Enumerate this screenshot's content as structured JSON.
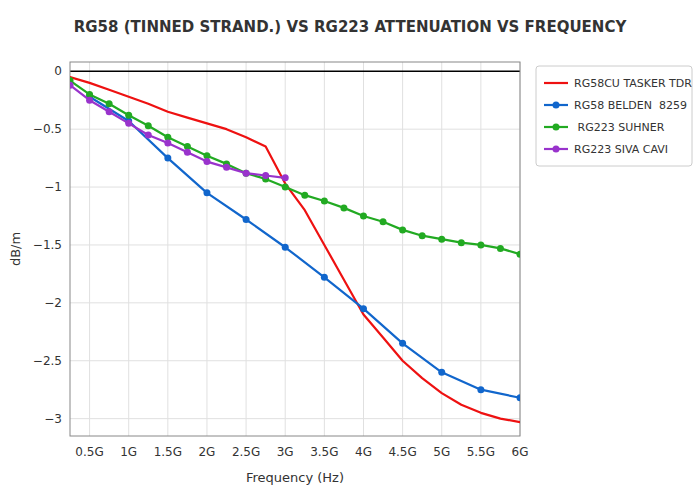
{
  "chart_data": {
    "type": "line",
    "title": "RG58 (TINNED STRAND.) VS RG223 ATTENUATION VS FREQUENCY",
    "x_label": "Frequency (Hz)",
    "y_label": "dB/m",
    "xlim": [
      250000000.0,
      6000000000.0
    ],
    "ylim": [
      -3.15,
      0.08
    ],
    "xticks": [
      {
        "value": 500000000.0,
        "label": "0.5G"
      },
      {
        "value": 1000000000.0,
        "label": "1G"
      },
      {
        "value": 1500000000.0,
        "label": "1.5G"
      },
      {
        "value": 2000000000.0,
        "label": "2G"
      },
      {
        "value": 2500000000.0,
        "label": "2.5G"
      },
      {
        "value": 3000000000.0,
        "label": "3G"
      },
      {
        "value": 3500000000.0,
        "label": "3.5G"
      },
      {
        "value": 4000000000.0,
        "label": "4G"
      },
      {
        "value": 4500000000.0,
        "label": "4.5G"
      },
      {
        "value": 5000000000.0,
        "label": "5G"
      },
      {
        "value": 5500000000.0,
        "label": "5.5G"
      },
      {
        "value": 6000000000.0,
        "label": "6G"
      }
    ],
    "yticks": [
      0,
      {
        "value": -0.5,
        "label": "−0.5"
      },
      {
        "value": -1.0,
        "label": "−1"
      },
      {
        "value": -1.5,
        "label": "−1.5"
      },
      {
        "value": -2.0,
        "label": "−2"
      },
      {
        "value": -2.5,
        "label": "−2.5"
      },
      {
        "value": -3.0,
        "label": "−3"
      }
    ],
    "grid": true,
    "legend": "right",
    "series": [
      {
        "name": "RG58CU TASKER TDR",
        "color": "#ee1111",
        "x": [
          250000000.0,
          500000000.0,
          750000000.0,
          1000000000.0,
          1250000000.0,
          1500000000.0,
          1750000000.0,
          2000000000.0,
          2250000000.0,
          2500000000.0,
          2750000000.0,
          3000000000.0,
          3250000000.0,
          3500000000.0,
          3750000000.0,
          4000000000.0,
          4250000000.0,
          4500000000.0,
          4750000000.0,
          5000000000.0,
          5250000000.0,
          5500000000.0,
          5750000000.0,
          6000000000.0
        ],
        "values": [
          -0.05,
          -0.1,
          -0.16,
          -0.22,
          -0.28,
          -0.35,
          -0.4,
          -0.45,
          -0.5,
          -0.57,
          -0.65,
          -0.97,
          -1.2,
          -1.5,
          -1.8,
          -2.1,
          -2.3,
          -2.5,
          -2.65,
          -2.78,
          -2.88,
          -2.95,
          -3.0,
          -3.03
        ]
      },
      {
        "name": "RG58 BELDEN  8259",
        "color": "#1166cc",
        "marker": "circle",
        "x": [
          500000000.0,
          1000000000.0,
          1500000000.0,
          2000000000.0,
          2500000000.0,
          3000000000.0,
          3500000000.0,
          4000000000.0,
          4500000000.0,
          5000000000.0,
          5500000000.0,
          6000000000.0
        ],
        "values": [
          -0.22,
          -0.43,
          -0.75,
          -1.05,
          -1.28,
          -1.52,
          -1.78,
          -2.05,
          -2.35,
          -2.6,
          -2.75,
          -2.82
        ]
      },
      {
        "name": " RG223 SUHNER",
        "color": "#22aa22",
        "marker": "circle",
        "x": [
          250000000.0,
          500000000.0,
          750000000.0,
          1000000000.0,
          1250000000.0,
          1500000000.0,
          1750000000.0,
          2000000000.0,
          2250000000.0,
          2500000000.0,
          2750000000.0,
          3000000000.0,
          3250000000.0,
          3500000000.0,
          3750000000.0,
          4000000000.0,
          4250000000.0,
          4500000000.0,
          4750000000.0,
          5000000000.0,
          5250000000.0,
          5500000000.0,
          5750000000.0,
          6000000000.0
        ],
        "values": [
          -0.08,
          -0.2,
          -0.28,
          -0.38,
          -0.47,
          -0.57,
          -0.65,
          -0.73,
          -0.8,
          -0.88,
          -0.93,
          -1.0,
          -1.07,
          -1.12,
          -1.18,
          -1.25,
          -1.3,
          -1.37,
          -1.42,
          -1.45,
          -1.48,
          -1.5,
          -1.53,
          -1.58
        ]
      },
      {
        "name": "RG223 SIVA CAVI",
        "color": "#9933cc",
        "marker": "circle",
        "x": [
          250000000.0,
          500000000.0,
          750000000.0,
          1000000000.0,
          1250000000.0,
          1500000000.0,
          1750000000.0,
          2000000000.0,
          2250000000.0,
          2500000000.0,
          2750000000.0,
          3000000000.0
        ],
        "values": [
          -0.12,
          -0.25,
          -0.35,
          -0.45,
          -0.55,
          -0.62,
          -0.7,
          -0.78,
          -0.83,
          -0.88,
          -0.9,
          -0.92
        ]
      }
    ]
  }
}
